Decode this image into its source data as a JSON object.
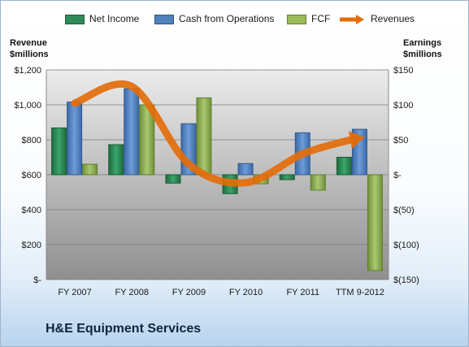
{
  "chart_data": {
    "type": "bar",
    "title": "H&E Equipment Services",
    "categories": [
      "FY 2007",
      "FY 2008",
      "FY 2009",
      "FY 2010",
      "FY 2011",
      "TTM 9-2012"
    ],
    "left_axis": {
      "label_line1": "Revenue",
      "label_line2": "$millions",
      "ticks": [
        "$-",
        "$200",
        "$400",
        "$600",
        "$800",
        "$1,000",
        "$1,200"
      ],
      "range": [
        0,
        1200
      ]
    },
    "right_axis": {
      "label_line1": "Earnings",
      "label_line2": "$millions",
      "ticks": [
        "$(150)",
        "$(100)",
        "$(50)",
        "$-",
        "$50",
        "$100",
        "$150"
      ],
      "range": [
        -150,
        150
      ]
    },
    "series": [
      {
        "name": "Net Income",
        "type": "bar",
        "axis": "right",
        "color": "#2e8b57",
        "values": [
          67,
          43,
          -12,
          -27,
          -7,
          25
        ]
      },
      {
        "name": "Cash from Operations",
        "type": "bar",
        "axis": "right",
        "color": "#4f81bd",
        "values": [
          104,
          123,
          73,
          16,
          60,
          65
        ]
      },
      {
        "name": "FCF",
        "type": "bar",
        "axis": "right",
        "color": "#9bbb59",
        "values": [
          15,
          100,
          110,
          -13,
          -22,
          -137
        ]
      },
      {
        "name": "Revenues",
        "type": "line",
        "axis": "left",
        "color": "#e46c0a",
        "values": [
          1010,
          1105,
          660,
          555,
          720,
          810
        ]
      }
    ],
    "grid": true,
    "legend_position": "top"
  }
}
